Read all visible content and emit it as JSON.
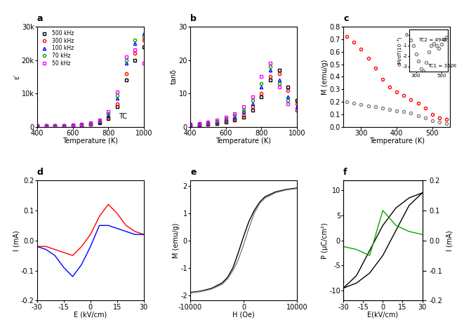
{
  "chart_data": [
    {
      "type": "line",
      "title": "a",
      "x_label": "Temperature (K)",
      "y_label": "ε′",
      "x": [
        400,
        450,
        500,
        550,
        600,
        650,
        700,
        750,
        800,
        850,
        900,
        950,
        1000
      ],
      "series": [
        {
          "name": "500 kHz",
          "color": "#000000",
          "marker": "square",
          "values": [
            300,
            320,
            350,
            400,
            480,
            600,
            800,
            1200,
            2500,
            6000,
            14000,
            20000,
            24000
          ]
        },
        {
          "name": "300 kHz",
          "color": "#ff0000",
          "marker": "circle",
          "values": [
            300,
            330,
            360,
            420,
            500,
            650,
            900,
            1400,
            3000,
            7000,
            16000,
            22000,
            26000
          ]
        },
        {
          "name": "100 kHz",
          "color": "#0000ff",
          "marker": "triangle",
          "values": [
            320,
            340,
            380,
            450,
            550,
            720,
            1000,
            1700,
            3500,
            8500,
            19000,
            25000,
            28000
          ]
        },
        {
          "name": "70 kHz",
          "color": "#00aa00",
          "marker": "circle",
          "values": [
            330,
            350,
            400,
            470,
            580,
            760,
            1100,
            1900,
            4000,
            9500,
            20000,
            26000,
            27000
          ]
        },
        {
          "name": "50 kHz",
          "color": "#ff00ff",
          "marker": "square",
          "values": [
            350,
            370,
            420,
            500,
            620,
            820,
            1200,
            2100,
            4500,
            10500,
            21000,
            23000,
            19000
          ]
        }
      ],
      "xlim": [
        400,
        1000
      ],
      "xticks": [
        400,
        600,
        800,
        1000
      ],
      "ylim": [
        0,
        30000
      ],
      "yticks": [
        0,
        {
          "value": 10000,
          "label": "10k"
        },
        {
          "value": 20000,
          "label": "20k"
        },
        {
          "value": 30000,
          "label": "30k"
        }
      ],
      "legend": "upper left",
      "annotations": [
        {
          "text": "TC",
          "x": 860,
          "y": 2500
        }
      ]
    },
    {
      "type": "line",
      "title": "b",
      "x_label": "Temperature (K)",
      "y_label": "tanδ",
      "x": [
        400,
        450,
        500,
        550,
        600,
        650,
        700,
        750,
        800,
        850,
        900,
        950,
        1000
      ],
      "series": [
        {
          "color": "#000000",
          "marker": "square",
          "values": [
            0.5,
            0.6,
            0.8,
            1.0,
            1.5,
            2,
            3,
            5,
            9,
            14,
            17,
            12,
            8
          ]
        },
        {
          "color": "#ff0000",
          "marker": "circle",
          "values": [
            0.6,
            0.7,
            0.9,
            1.2,
            1.8,
            2.5,
            3.5,
            6,
            10,
            15,
            16,
            11,
            7
          ]
        },
        {
          "color": "#0000ff",
          "marker": "triangle",
          "values": [
            0.7,
            0.9,
            1.1,
            1.5,
            2.2,
            3,
            4.5,
            7,
            12,
            17,
            14,
            9,
            6
          ]
        },
        {
          "color": "#00aa00",
          "marker": "circle",
          "values": [
            0.8,
            1.0,
            1.2,
            1.7,
            2.5,
            3.5,
            5,
            8,
            13,
            18,
            13,
            8,
            5
          ]
        },
        {
          "color": "#ff00ff",
          "marker": "square",
          "values": [
            0.9,
            1.1,
            1.4,
            2,
            3,
            4,
            6,
            9,
            15,
            19,
            12,
            7,
            5
          ]
        }
      ],
      "xlim": [
        400,
        1000
      ],
      "xticks": [
        400,
        600,
        800,
        1000
      ],
      "ylim": [
        0,
        30
      ],
      "yticks": [
        0,
        10,
        20,
        30
      ]
    },
    {
      "type": "line",
      "title": "c",
      "x_label": "Temperature (K)",
      "y_label": "M (emu/g)",
      "x": [
        260,
        280,
        300,
        320,
        340,
        360,
        380,
        400,
        420,
        440,
        460,
        480,
        500,
        520,
        540
      ],
      "series": [
        {
          "color": "#ff0000",
          "marker": "circle",
          "values": [
            0.72,
            0.68,
            0.62,
            0.55,
            0.47,
            0.38,
            0.32,
            0.28,
            0.25,
            0.22,
            0.19,
            0.15,
            0.1,
            0.07,
            0.06
          ]
        },
        {
          "color": "#808080",
          "marker": "circle",
          "values": [
            0.2,
            0.19,
            0.18,
            0.17,
            0.16,
            0.15,
            0.14,
            0.13,
            0.12,
            0.11,
            0.09,
            0.07,
            0.05,
            0.04,
            0.03
          ]
        }
      ],
      "xlim": [
        250,
        550
      ],
      "xticks": [
        300,
        400,
        500
      ],
      "ylim": [
        0.0,
        0.8
      ],
      "yticks": [
        0.0,
        0.1,
        0.2,
        0.3,
        0.4,
        0.5,
        0.6,
        0.7,
        0.8
      ],
      "inset": {
        "type": "line",
        "y_label": "dM/dT(10⁻³)",
        "x": [
          260,
          280,
          300,
          320,
          340,
          360,
          380,
          400,
          420,
          440,
          460,
          480,
          500,
          520,
          540
        ],
        "series": [
          {
            "color": "#808080",
            "marker": "circle",
            "values": [
              -0.5,
              -1,
              -1.8,
              -2.5,
              -3.2,
              -3.4,
              -2.6,
              -1.6,
              -1,
              -0.8,
              -1,
              -1.3,
              -0.9,
              -0.4,
              -0.2
            ]
          }
        ],
        "xlim": [
          250,
          550
        ],
        "xticks": [
          300,
          500
        ],
        "ylim": [
          -3.5,
          0.5
        ],
        "yticks": [
          0,
          -1,
          -2,
          -3
        ],
        "annotations": [
          {
            "text": "TC1 = 352K",
            "x": 390,
            "y": -3.1
          },
          {
            "text": "TC2 = 494K",
            "x": 320,
            "y": -0.6
          }
        ]
      }
    },
    {
      "type": "line",
      "title": "d",
      "x_label": "E (kV/cm)",
      "y_label": "I (mA)",
      "x": [
        -30,
        -25,
        -20,
        -15,
        -10,
        -5,
        0,
        5,
        10,
        15,
        20,
        25,
        30
      ],
      "series": [
        {
          "color": "#ff0000",
          "line_style": "solid",
          "values": [
            -0.02,
            -0.02,
            -0.03,
            -0.04,
            -0.05,
            -0.02,
            0.02,
            0.08,
            0.12,
            0.09,
            0.05,
            0.03,
            0.02
          ]
        },
        {
          "color": "#0000ff",
          "line_style": "solid",
          "values": [
            -0.02,
            -0.03,
            -0.05,
            -0.09,
            -0.12,
            -0.08,
            -0.02,
            0.05,
            0.05,
            0.04,
            0.03,
            0.02,
            0.02
          ]
        }
      ],
      "xlim": [
        -30,
        30
      ],
      "xticks": [
        -30,
        -15,
        0,
        15,
        30
      ],
      "ylim": [
        -0.2,
        0.2
      ],
      "yticks": [
        -0.2,
        -0.1,
        0.0,
        0.1,
        0.2
      ]
    },
    {
      "type": "line",
      "title": "e",
      "x_label": "H (Oe)",
      "y_label": "M (emu/g)",
      "x": [
        -10000,
        -8000,
        -6000,
        -4000,
        -3000,
        -2000,
        -1000,
        0,
        1000,
        2000,
        3000,
        4000,
        6000,
        8000,
        10000
      ],
      "series": [
        {
          "color": "#000000",
          "line_style": "solid",
          "values": [
            -1.9,
            -1.85,
            -1.75,
            -1.55,
            -1.35,
            -1.0,
            -0.45,
            0.15,
            0.7,
            1.1,
            1.4,
            1.6,
            1.78,
            1.87,
            1.92
          ]
        },
        {
          "color": "#808080",
          "line_style": "solid",
          "values": [
            -1.92,
            -1.87,
            -1.78,
            -1.6,
            -1.4,
            -1.1,
            -0.7,
            -0.15,
            0.45,
            1.0,
            1.35,
            1.55,
            1.75,
            1.85,
            1.9
          ]
        }
      ],
      "xlim": [
        -10000,
        10000
      ],
      "xticks": [
        -10000,
        0,
        10000
      ],
      "ylim": [
        -2.2,
        2.2
      ],
      "yticks": [
        -2,
        -1,
        0,
        1,
        2
      ]
    },
    {
      "type": "line",
      "title": "f",
      "x_label": "E(kV/cm)",
      "y_label": "P (μC/cm²)",
      "y2_label": "I (mA)",
      "x": [
        -30,
        -20,
        -10,
        0,
        10,
        20,
        30
      ],
      "series": [
        {
          "color": "#000000",
          "line_style": "solid",
          "values": [
            -9.5,
            -8.5,
            -6.5,
            -3,
            2,
            7,
            9.5
          ]
        },
        {
          "color": "#000000",
          "line_style": "solid",
          "values": [
            -9.5,
            -7,
            -2,
            3,
            6.5,
            8.5,
            9.5
          ]
        },
        {
          "color": "#00aa00",
          "line_style": "solid",
          "axis": "y2",
          "values": [
            -0.02,
            -0.03,
            -0.05,
            0.1,
            0.05,
            0.03,
            0.02
          ]
        }
      ],
      "xlim": [
        -30,
        30
      ],
      "xticks": [
        -30,
        -15,
        0,
        15,
        30
      ],
      "ylim": [
        -12,
        12
      ],
      "yticks": [
        -10,
        -5,
        0,
        5,
        10
      ],
      "y2lim": [
        -0.2,
        0.2
      ],
      "y2ticks": [
        -0.2,
        -0.1,
        0.0,
        0.1,
        0.2
      ]
    }
  ]
}
